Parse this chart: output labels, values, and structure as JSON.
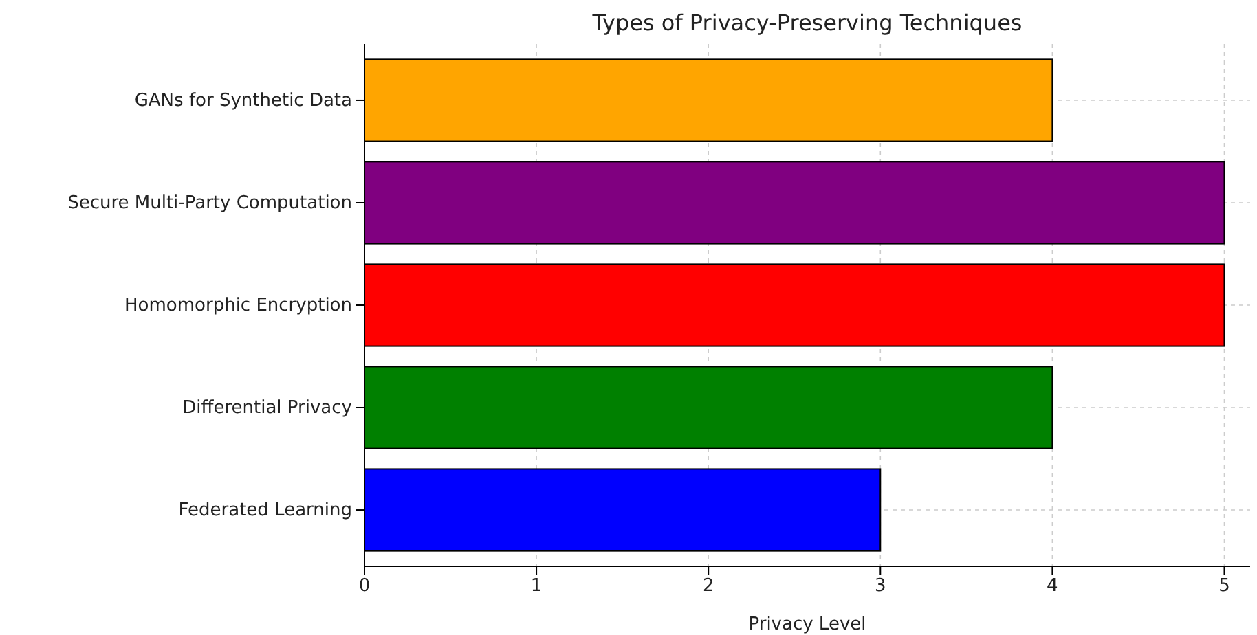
{
  "chart_data": {
    "type": "bar",
    "orientation": "horizontal",
    "title": "Types of Privacy-Preserving Techniques",
    "xlabel": "Privacy Level",
    "categories": [
      "GANs for Synthetic Data",
      "Secure Multi-Party Computation",
      "Homomorphic Encryption",
      "Differential Privacy",
      "Federated Learning"
    ],
    "values": [
      4,
      5,
      5,
      4,
      3
    ],
    "colors": [
      "#ffa500",
      "#800080",
      "#ff0000",
      "#008000",
      "#0000ff"
    ],
    "xlim": [
      0,
      5.15
    ],
    "xticks": [
      0,
      1,
      2,
      3,
      4,
      5
    ],
    "grid": true
  }
}
